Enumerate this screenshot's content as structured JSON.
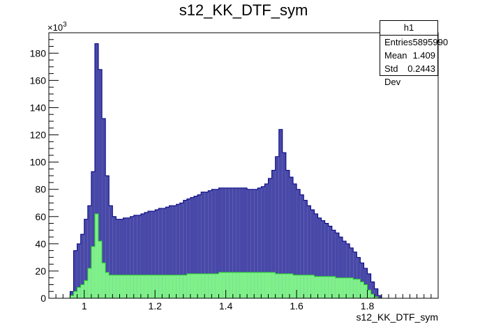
{
  "title": "s12_KK_DTF_sym",
  "stats": {
    "name": "h1",
    "rows": [
      {
        "label": "Entries",
        "value": "5895990"
      },
      {
        "label": "Mean",
        "value": "1.409"
      },
      {
        "label": "Std Dev",
        "value": "0.2443"
      }
    ]
  },
  "colors": {
    "outer_fill": "#4848a8",
    "outer_line": "#000080",
    "inner_fill": "#7ff08a",
    "inner_line": "#28d028"
  },
  "chart_data": {
    "type": "bar",
    "title": "s12_KK_DTF_sym",
    "xlabel": "s12_KK_DTF_sym",
    "ylabel": "",
    "y_exponent_label": "×10",
    "y_exponent": "3",
    "xlim": [
      0.9,
      2.0
    ],
    "ylim": [
      0,
      195
    ],
    "bin_width": 0.01,
    "x_ticks": [
      1,
      1.2,
      1.4,
      1.6,
      1.8
    ],
    "x_tick_labels": [
      "1",
      "1.2",
      "1.4",
      "1.6",
      "1.8"
    ],
    "y_ticks": [
      0,
      20,
      40,
      60,
      80,
      100,
      120,
      140,
      160,
      180
    ],
    "y_tick_labels": [
      "0",
      "20",
      "40",
      "60",
      "80",
      "100",
      "120",
      "140",
      "160",
      "180"
    ],
    "grid": false,
    "series": [
      {
        "x_start": 0.96,
        "values": [
          5,
          35,
          40,
          47,
          58,
          68,
          93,
          187,
          168,
          132,
          90,
          68,
          60,
          58,
          58,
          59,
          59,
          60,
          61,
          61,
          62,
          63,
          64,
          64,
          65,
          66,
          66,
          67,
          68,
          68,
          69,
          70,
          72,
          73,
          74,
          75,
          76,
          78,
          78,
          79,
          80,
          80,
          81,
          81,
          81,
          81,
          81,
          81,
          81,
          81,
          80,
          80,
          80,
          81,
          82,
          84,
          88,
          94,
          104,
          124,
          107,
          94,
          89,
          84,
          80,
          76,
          72,
          68,
          65,
          62,
          59,
          57,
          55,
          53,
          50,
          48,
          45,
          42,
          40,
          37,
          34,
          30,
          26,
          22,
          18,
          12,
          7,
          2
        ]
      },
      {
        "x_start": 0.96,
        "values": [
          2,
          5,
          8,
          10,
          13,
          22,
          38,
          62,
          42,
          26,
          19,
          17,
          17,
          17,
          17,
          17,
          17,
          17,
          17,
          17,
          17,
          17,
          17,
          17,
          17,
          17,
          17,
          17,
          17,
          17,
          17,
          17,
          17,
          18,
          18,
          18,
          18,
          18,
          18,
          18,
          18,
          18,
          19,
          19,
          19,
          19,
          19,
          19,
          19,
          19,
          19,
          19,
          19,
          19,
          19,
          19,
          19,
          19,
          18,
          18,
          18,
          18,
          18,
          17,
          17,
          17,
          17,
          17,
          17,
          16,
          16,
          16,
          16,
          16,
          16,
          15,
          15,
          15,
          15,
          15,
          14,
          14,
          12,
          10,
          6,
          3,
          1,
          0
        ]
      }
    ]
  }
}
